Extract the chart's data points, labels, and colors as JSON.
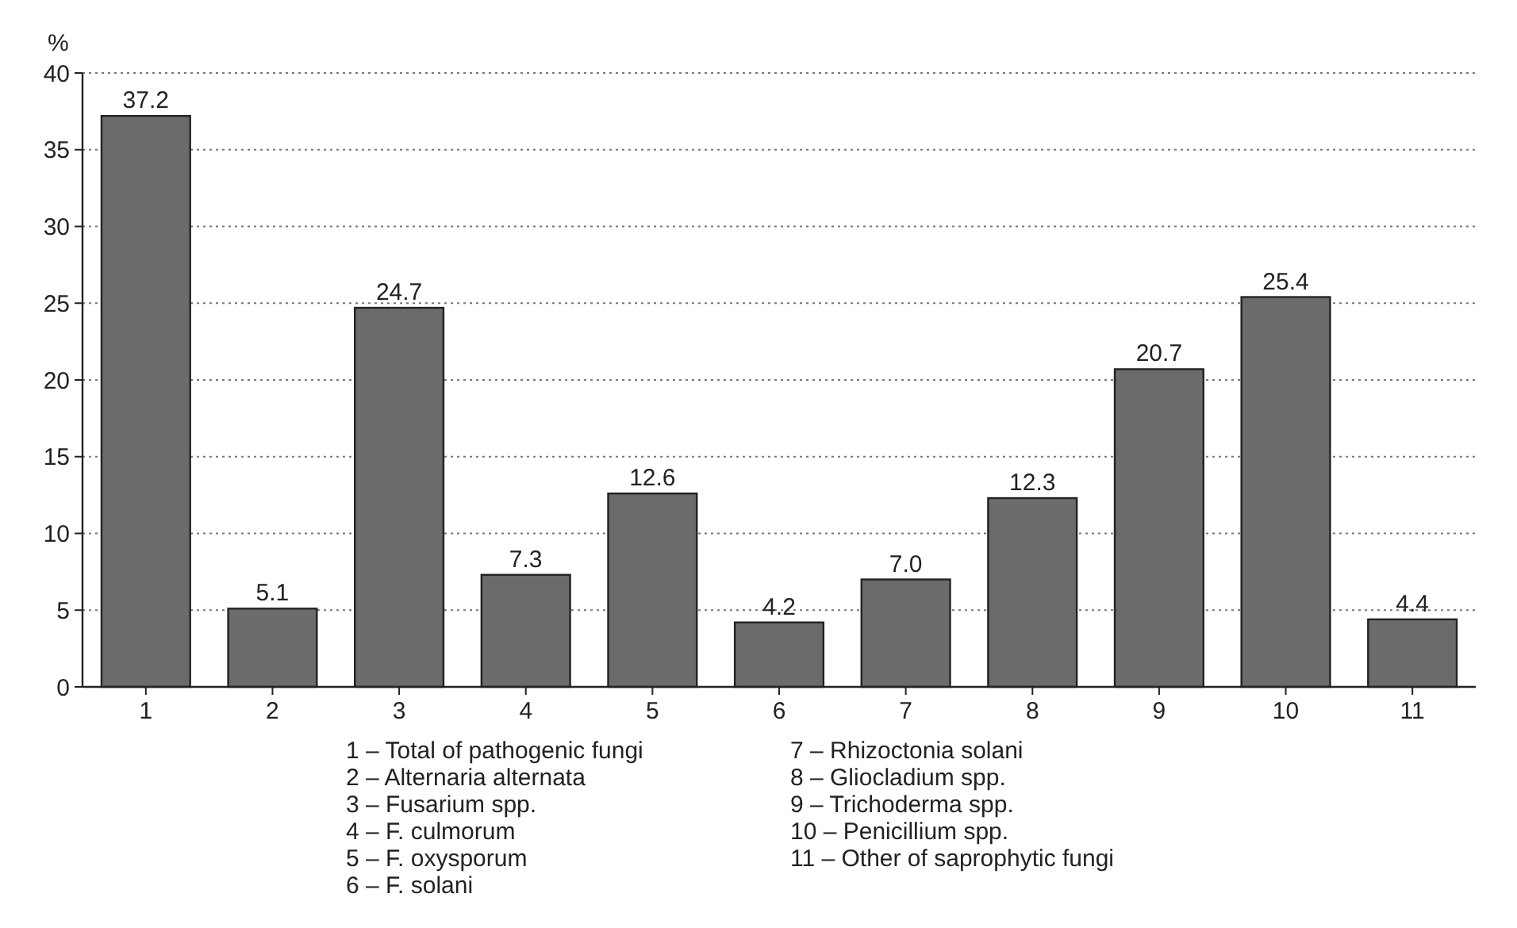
{
  "chart_data": {
    "type": "bar",
    "ylabel": "%",
    "categories": [
      "1",
      "2",
      "3",
      "4",
      "5",
      "6",
      "7",
      "8",
      "9",
      "10",
      "11"
    ],
    "values": [
      37.2,
      5.1,
      24.7,
      7.3,
      12.6,
      4.2,
      7.0,
      12.3,
      20.7,
      25.4,
      4.4
    ],
    "value_labels": [
      "37.2",
      "5.1",
      "24.7",
      "7.3",
      "12.6",
      "4.2",
      "7.0",
      "12.3",
      "20.7",
      "25.4",
      "4.4"
    ],
    "color": "#6b6b6b",
    "ylim": [
      0,
      40
    ],
    "yticks": [
      0,
      5,
      10,
      15,
      20,
      25,
      30,
      35,
      40
    ],
    "grid": "y",
    "annotations": [
      "1 – Total of pathogenic fungi",
      "2 – Alternaria alternata",
      "3 – Fusarium spp.",
      "4 – F. culmorum",
      "5 – F. oxysporum",
      "6 – F. solani",
      "7 – Rhizoctonia solani",
      "8 – Gliocladium spp.",
      "9 – Trichoderma spp.",
      "10 – Penicillium spp.",
      "11 – Other of saprophytic fungi"
    ]
  }
}
